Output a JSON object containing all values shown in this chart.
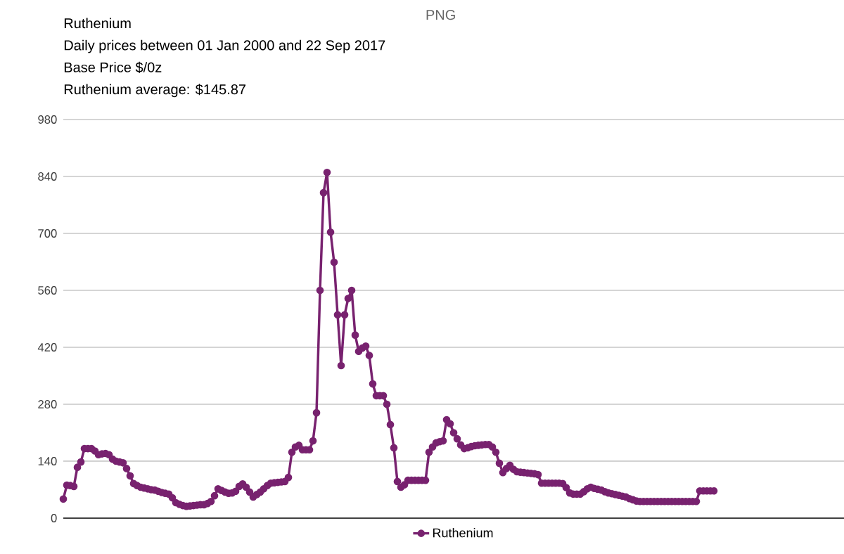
{
  "chart_data": {
    "type": "line",
    "title": "Ruthenium",
    "subtitle": "Daily prices between 01 Jan 2000 and 22 Sep 2017",
    "annotations": [
      "Base Price $/0z",
      "Ruthenium average: $145.87",
      "PNG"
    ],
    "categories": [
      null,
      null,
      null,
      null,
      null,
      null,
      null,
      null,
      null,
      null,
      null,
      null,
      null,
      null,
      null,
      null,
      null,
      null,
      null,
      null,
      null,
      null,
      null,
      null,
      null,
      null,
      null,
      null,
      null,
      null,
      null,
      null,
      null,
      null,
      null,
      null,
      null,
      null,
      null,
      null,
      null,
      null,
      null,
      null,
      null,
      null,
      null,
      null,
      null,
      null,
      null,
      null,
      null,
      null,
      null,
      null,
      null,
      null,
      null,
      null,
      null,
      null,
      null,
      null,
      null,
      null,
      null,
      null,
      null,
      null,
      null,
      null,
      null,
      null,
      null,
      null,
      null,
      null,
      null,
      null,
      null,
      null,
      null,
      null,
      null,
      null,
      null,
      null,
      null,
      null,
      null,
      null,
      null,
      null,
      null,
      null,
      null,
      null,
      null,
      null,
      null,
      null,
      null,
      null,
      null,
      null,
      null,
      null,
      null,
      null,
      null,
      null,
      null,
      null,
      null,
      null,
      null,
      null,
      null,
      null,
      null,
      null,
      null,
      null,
      null,
      null,
      null,
      null,
      null,
      null,
      null,
      null,
      null,
      null,
      null,
      null,
      null,
      null,
      null,
      null,
      null,
      null,
      null,
      null,
      null,
      null,
      null,
      null,
      null,
      null,
      null,
      null,
      null,
      null,
      null,
      null,
      null,
      null,
      null,
      null,
      null,
      null,
      null,
      null,
      null,
      null,
      null,
      null,
      null,
      null,
      null,
      null,
      null,
      null,
      null,
      null,
      null,
      null,
      null,
      null,
      null,
      null,
      null,
      null,
      null,
      null,
      null,
      null,
      null,
      null,
      null,
      null,
      null,
      null,
      null,
      null,
      null,
      null,
      null,
      null,
      null,
      null,
      null,
      null,
      null,
      null,
      null,
      null,
      null,
      null,
      null,
      null,
      null,
      null,
      null,
      null,
      null,
      null,
      null,
      null,
      null,
      null,
      null
    ],
    "series": [
      {
        "name": "Ruthenium",
        "color": "#78226f",
        "values": [
          47,
          81,
          80,
          78,
          125,
          138,
          171,
          171,
          171,
          165,
          156,
          158,
          159,
          156,
          145,
          140,
          138,
          136,
          122,
          104,
          85,
          80,
          76,
          74,
          72,
          70,
          69,
          66,
          63,
          61,
          59,
          50,
          38,
          34,
          31,
          29,
          30,
          31,
          32,
          33,
          33,
          36,
          41,
          55,
          72,
          68,
          64,
          61,
          62,
          66,
          78,
          84,
          76,
          64,
          52,
          58,
          64,
          72,
          80,
          86,
          87,
          88,
          89,
          90,
          100,
          162,
          175,
          179,
          168,
          168,
          168,
          190,
          259,
          560,
          800,
          850,
          703,
          629,
          500,
          375,
          500,
          540,
          560,
          450,
          410,
          418,
          423,
          400,
          330,
          301,
          301,
          301,
          280,
          230,
          173,
          90,
          76,
          82,
          93,
          93,
          93,
          93,
          93,
          93,
          162,
          175,
          185,
          188,
          190,
          242,
          232,
          210,
          195,
          180,
          171,
          173,
          176,
          178,
          179,
          180,
          181,
          181,
          175,
          162,
          135,
          112,
          122,
          130,
          120,
          114,
          113,
          112,
          111,
          110,
          109,
          107,
          86,
          86,
          86,
          86,
          86,
          86,
          85,
          75,
          62,
          59,
          59,
          59,
          65,
          72,
          76,
          73,
          71,
          69,
          65,
          62,
          60,
          58,
          56,
          54,
          52,
          48,
          45,
          42,
          41,
          41,
          41,
          41,
          41,
          41,
          41,
          41,
          41,
          41,
          41,
          41,
          41,
          41,
          41,
          41,
          41,
          67,
          67,
          67,
          67,
          67,
          null,
          null,
          null,
          null,
          null,
          null,
          null,
          null,
          null,
          null,
          null,
          null,
          null,
          null,
          null,
          null,
          null,
          null,
          null,
          null,
          null,
          null,
          null,
          null,
          null,
          null,
          null,
          null,
          null,
          null,
          null,
          null,
          null,
          null,
          null,
          null,
          null
        ]
      }
    ],
    "ylim": [
      0,
      980
    ],
    "yticks": [
      0,
      140,
      280,
      420,
      560,
      700,
      840,
      980
    ],
    "grid": "y",
    "legend": "bottom",
    "marker": "circle",
    "line_style": "solid"
  }
}
